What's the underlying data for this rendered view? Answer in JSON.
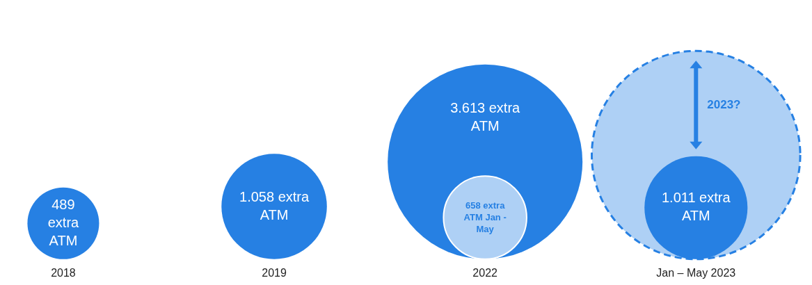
{
  "chart_data": {
    "type": "other",
    "categories": [
      "2018",
      "2019",
      "2022",
      "Jan – May 2023"
    ],
    "series": [
      {
        "color": "#2680e3",
        "values": [
          489,
          1058,
          3613,
          1011
        ],
        "value_labels": [
          "489 extra ATM",
          "1.058 extra ATM",
          "3.613 extra ATM",
          "1.011 extra ATM"
        ]
      },
      {
        "color": "#aed0f5",
        "values": [
          null,
          null,
          658,
          null
        ],
        "value_labels": [
          null,
          null,
          "658 extra ATM Jan - May",
          null
        ]
      }
    ],
    "annotations": [
      "2023?"
    ]
  }
}
